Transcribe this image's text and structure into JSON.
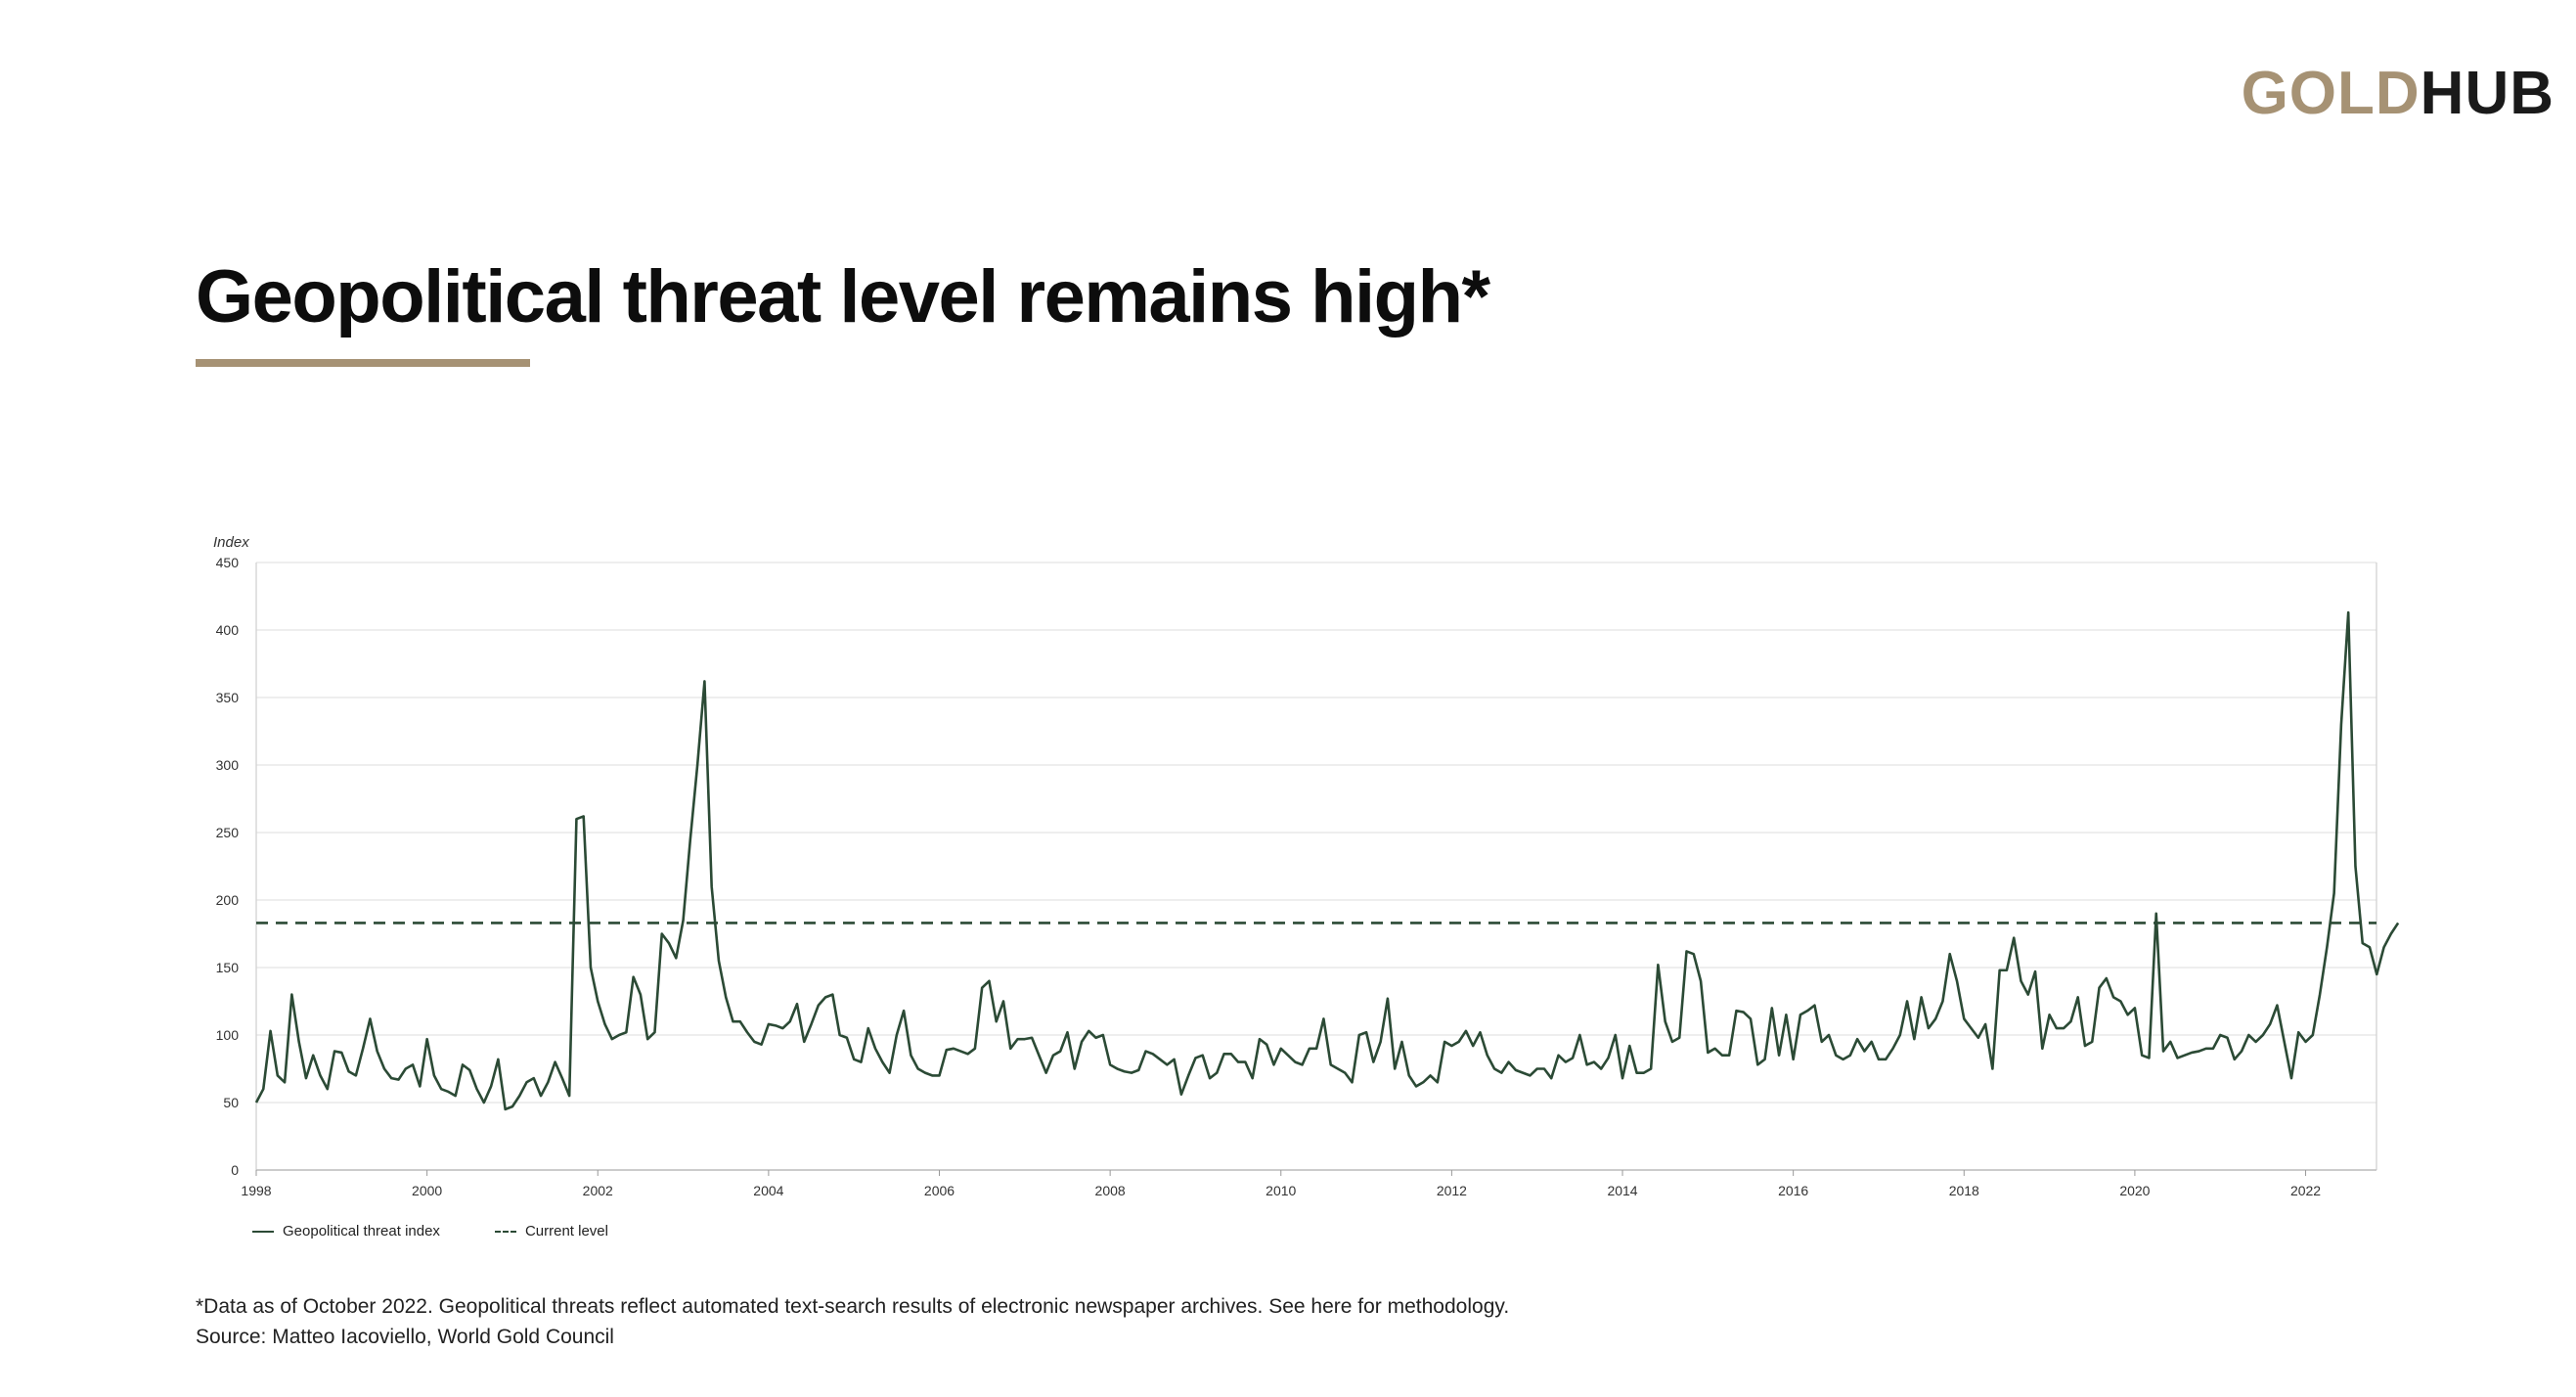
{
  "brand": {
    "part1": "GOLD",
    "part2": "HUB"
  },
  "title": "Geopolitical threat level remains high*",
  "footnote": "*Data as of October 2022. Geopolitical threats reflect automated text-search results of electronic newspaper archives. See here for methodology.",
  "source": "Source: Matteo Iacoviello, World Gold Council",
  "colors": {
    "accent": "#a69274",
    "line": "#2b4a35"
  },
  "chart_data": {
    "type": "line",
    "ylabel": "Index",
    "ylim": [
      0,
      450
    ],
    "yticks": [
      0,
      50,
      100,
      150,
      200,
      250,
      300,
      350,
      400,
      450
    ],
    "xlim": [
      1998.0,
      2022.83
    ],
    "xticks": [
      "1998",
      "2000",
      "2002",
      "2004",
      "2006",
      "2008",
      "2010",
      "2012",
      "2014",
      "2016",
      "2018",
      "2020",
      "2022"
    ],
    "grid": "horizontal",
    "legend_position": "bottom-left",
    "legend": [
      "Geopolitical threat index",
      "Current level"
    ],
    "current_level": 183,
    "series": [
      {
        "name": "Geopolitical threat index",
        "frequency": "monthly",
        "start": "1998-01",
        "values": [
          50,
          60,
          103,
          70,
          65,
          130,
          95,
          68,
          85,
          70,
          60,
          88,
          87,
          73,
          70,
          90,
          112,
          88,
          75,
          68,
          67,
          75,
          78,
          62,
          97,
          70,
          60,
          58,
          55,
          78,
          74,
          60,
          50,
          62,
          82,
          45,
          47,
          55,
          65,
          68,
          55,
          65,
          80,
          68,
          55,
          260,
          262,
          150,
          125,
          108,
          97,
          100,
          102,
          143,
          130,
          97,
          102,
          175,
          168,
          157,
          185,
          245,
          300,
          362,
          210,
          155,
          128,
          110,
          110,
          102,
          95,
          93,
          108,
          107,
          105,
          110,
          123,
          95,
          108,
          122,
          128,
          130,
          100,
          98,
          82,
          80,
          105,
          90,
          80,
          72,
          100,
          118,
          85,
          75,
          72,
          70,
          70,
          89,
          90,
          88,
          86,
          90,
          135,
          140,
          110,
          125,
          90,
          97,
          97,
          98,
          85,
          72,
          85,
          88,
          102,
          75,
          95,
          103,
          98,
          100,
          78,
          75,
          73,
          72,
          74,
          88,
          86,
          82,
          78,
          82,
          56,
          70,
          83,
          85,
          68,
          72,
          86,
          86,
          80,
          80,
          68,
          97,
          93,
          78,
          90,
          85,
          80,
          78,
          90,
          90,
          112,
          78,
          75,
          72,
          65,
          100,
          102,
          80,
          95,
          127,
          75,
          95,
          70,
          62,
          65,
          70,
          65,
          95,
          92,
          95,
          103,
          92,
          102,
          85,
          75,
          72,
          80,
          74,
          72,
          70,
          75,
          75,
          68,
          85,
          80,
          83,
          100,
          78,
          80,
          75,
          83,
          100,
          68,
          92,
          72,
          72,
          75,
          152,
          110,
          95,
          98,
          162,
          160,
          140,
          87,
          90,
          85,
          85,
          118,
          117,
          112,
          78,
          82,
          120,
          85,
          115,
          82,
          115,
          118,
          122,
          95,
          100,
          85,
          82,
          85,
          97,
          88,
          95,
          82,
          82,
          90,
          100,
          125,
          97,
          128,
          105,
          112,
          125,
          160,
          140,
          112,
          105,
          98,
          108,
          75,
          148,
          148,
          172,
          140,
          130,
          147,
          90,
          115,
          105,
          105,
          110,
          128,
          92,
          95,
          135,
          142,
          128,
          125,
          115,
          120,
          85,
          83,
          190,
          88,
          95,
          83,
          85,
          87,
          88,
          90,
          90,
          100,
          98,
          82,
          88,
          100,
          95,
          100,
          108,
          122,
          95,
          68,
          102,
          95,
          100,
          130,
          165,
          205,
          330,
          413,
          225,
          168,
          165,
          145,
          165,
          175,
          183
        ]
      }
    ]
  }
}
